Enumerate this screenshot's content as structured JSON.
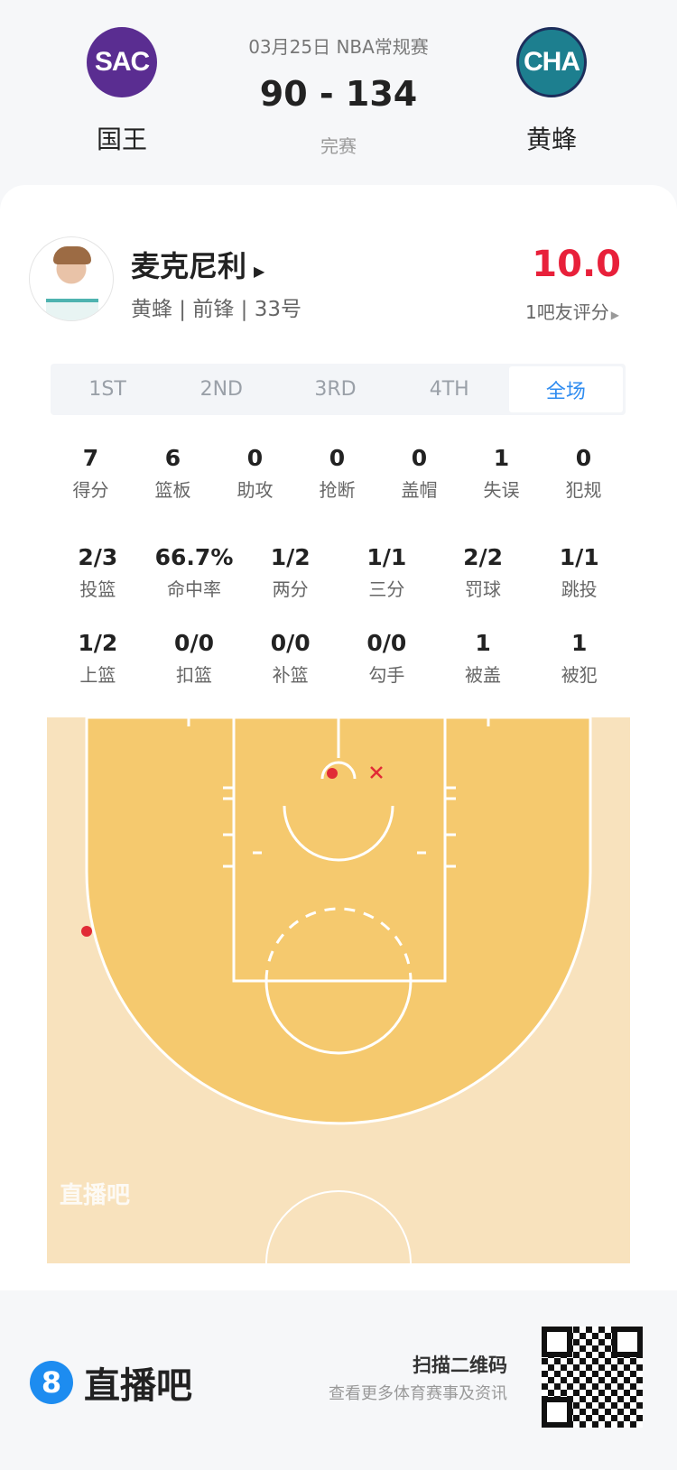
{
  "match": {
    "date_league": "03月25日 NBA常规赛",
    "score": "90 - 134",
    "status": "完赛",
    "home": {
      "abbr": "SAC",
      "name": "国王",
      "color": "#5a2d91"
    },
    "away": {
      "abbr": "CHA",
      "name": "黄蜂",
      "color": "#1d7f8f"
    }
  },
  "player": {
    "name": "麦克尼利",
    "meta": "黄蜂 | 前锋 | 33号",
    "rating": "10.0",
    "rating_label": "1吧友评分",
    "rating_color": "#e8203a"
  },
  "tabs": [
    {
      "label": "1ST"
    },
    {
      "label": "2ND"
    },
    {
      "label": "3RD"
    },
    {
      "label": "4TH"
    },
    {
      "label": "全场",
      "active": true
    }
  ],
  "stats_row1": [
    {
      "v": "7",
      "l": "得分"
    },
    {
      "v": "6",
      "l": "篮板"
    },
    {
      "v": "0",
      "l": "助攻"
    },
    {
      "v": "0",
      "l": "抢断"
    },
    {
      "v": "0",
      "l": "盖帽"
    },
    {
      "v": "1",
      "l": "失误"
    },
    {
      "v": "0",
      "l": "犯规"
    }
  ],
  "stats_row2": [
    {
      "v": "2/3",
      "l": "投篮"
    },
    {
      "v": "66.7%",
      "l": "命中率"
    },
    {
      "v": "1/2",
      "l": "两分"
    },
    {
      "v": "1/1",
      "l": "三分"
    },
    {
      "v": "2/2",
      "l": "罚球"
    },
    {
      "v": "1/1",
      "l": "跳投"
    }
  ],
  "stats_row3": [
    {
      "v": "1/2",
      "l": "上篮"
    },
    {
      "v": "0/0",
      "l": "扣篮"
    },
    {
      "v": "0/0",
      "l": "补篮"
    },
    {
      "v": "0/0",
      "l": "勾手"
    },
    {
      "v": "1",
      "l": "被盖"
    },
    {
      "v": "1",
      "l": "被犯"
    }
  ],
  "shot_chart": {
    "watermark": "直播吧",
    "shots": [
      {
        "result": "made",
        "type": "3pt",
        "zone": "left wing"
      },
      {
        "result": "made",
        "type": "layup",
        "zone": "rim"
      },
      {
        "result": "missed",
        "type": "2pt",
        "zone": "near rim right"
      }
    ],
    "made_color": "#e12b36",
    "missed_color": "#e12b36"
  },
  "footer": {
    "brand": "直播吧",
    "brand_icon": "8",
    "scan_title": "扫描二维码",
    "scan_sub": "查看更多体育赛事及资讯"
  }
}
